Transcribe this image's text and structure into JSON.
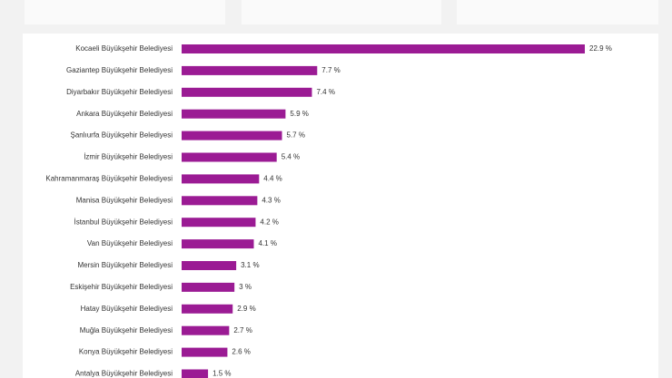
{
  "chart_data": {
    "type": "hbar",
    "color": "#9b1b94",
    "categories": [
      "Kocaeli Büyükşehir Belediyesi",
      "Gaziantep Büyükşehir Belediyesi",
      "Diyarbakır Büyükşehir Belediyesi",
      "Ankara Büyükşehir Belediyesi",
      "Şanlıurfa Büyükşehir Belediyesi",
      "İzmir Büyükşehir Belediyesi",
      "Kahramanmaraş Büyükşehir Belediyesi",
      "Manisa Büyükşehir Belediyesi",
      "İstanbul Büyükşehir Belediyesi",
      "Van Büyükşehir Belediyesi",
      "Mersin Büyükşehir Belediyesi",
      "Eskişehir Büyükşehir Belediyesi",
      "Hatay Büyükşehir Belediyesi",
      "Muğla Büyükşehir Belediyesi",
      "Konya Büyükşehir Belediyesi",
      "Antalya Büyükşehir Belediyesi"
    ],
    "values": [
      22.9,
      7.7,
      7.4,
      5.9,
      5.7,
      5.4,
      4.4,
      4.3,
      4.2,
      4.1,
      3.1,
      3,
      2.9,
      2.7,
      2.6,
      1.5
    ],
    "value_labels": [
      "22.9 %",
      "7.7 %",
      "7.4 %",
      "5.9 %",
      "5.7 %",
      "5.4 %",
      "4.4 %",
      "4.3 %",
      "4.2 %",
      "4.1 %",
      "3.1 %",
      "3 %",
      "2.9 %",
      "2.7 %",
      "2.6 %",
      "1.5 %"
    ]
  }
}
